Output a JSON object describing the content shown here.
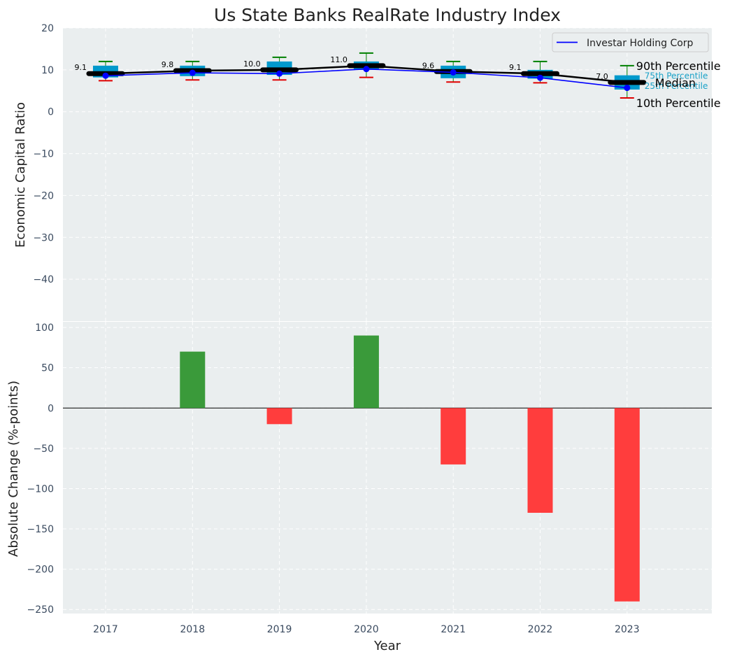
{
  "title": "Us State Banks RealRate Industry Index",
  "colors": {
    "plot_bg": "#EAEEEF",
    "grid": "#FFFFFF",
    "box": "#0099CC",
    "median": "#000000",
    "company": "#0000FF",
    "whisker_hi": "#008000",
    "whisker_lo": "#E00000",
    "pos_bar": "#3A9A3A",
    "neg_bar": "#FF3D3D",
    "tick_text": "#3A4A5F",
    "annotation_small": "#1AA2C8"
  },
  "chart_data": [
    {
      "type": "box",
      "panel": "top",
      "ylabel": "Economic Capital Ratio",
      "ylim": [
        -50,
        20
      ],
      "yticks": [
        20,
        10,
        0,
        -10,
        -20,
        -30,
        -40
      ],
      "categories": [
        "2017",
        "2018",
        "2019",
        "2020",
        "2021",
        "2022",
        "2023"
      ],
      "p90": [
        12.0,
        12.0,
        13.0,
        14.0,
        12.0,
        12.0,
        11.0
      ],
      "p75": [
        11.0,
        11.0,
        12.0,
        12.0,
        11.0,
        10.0,
        8.7
      ],
      "median": [
        9.1,
        9.8,
        10.0,
        11.0,
        9.6,
        9.1,
        7.0
      ],
      "p25": [
        8.2,
        8.5,
        8.8,
        10.0,
        8.0,
        7.9,
        5.3
      ],
      "p10": [
        7.4,
        7.6,
        7.6,
        8.2,
        7.1,
        6.9,
        3.3
      ],
      "median_labels": [
        "9.1",
        "9.8",
        "10.0",
        "11.0",
        "9.6",
        "9.1",
        "7.0"
      ],
      "series": [
        {
          "name": "Investar Holding Corp",
          "values": [
            8.6,
            9.3,
            9.1,
            10.2,
            9.4,
            8.1,
            5.7
          ]
        }
      ],
      "legend": "top-right",
      "annotations": {
        "p90": "90th Percentile",
        "p75": "75th Percentile",
        "median": "Median",
        "p25": "25th Percentile",
        "p10": "10th Percentile"
      }
    },
    {
      "type": "bar",
      "panel": "bottom",
      "xlabel": "Year",
      "ylabel": "Absolute Change (%-points)",
      "ylim": [
        -255,
        107
      ],
      "yticks": [
        100,
        50,
        0,
        -50,
        -100,
        -150,
        -200,
        -250
      ],
      "categories": [
        "2017",
        "2018",
        "2019",
        "2020",
        "2021",
        "2022",
        "2023"
      ],
      "values": [
        0,
        70,
        -20,
        90,
        -70,
        -130,
        -240
      ]
    }
  ]
}
